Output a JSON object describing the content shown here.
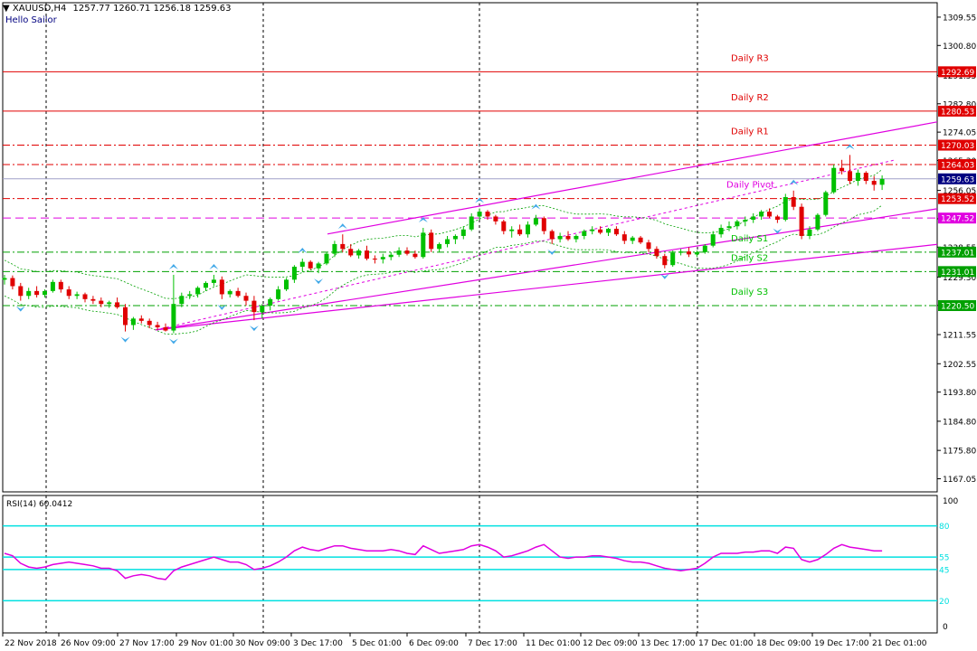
{
  "header": {
    "symbol": "XAUUSD,H4",
    "ohlc": "1257.77 1260.71 1256.18 1259.63",
    "indicator_name": "Hello Sailor"
  },
  "chart_data": {
    "type": "candlestick",
    "symbol": "XAUUSD",
    "timeframe": "H4",
    "current_price": 1259.63,
    "ylim": [
      1163,
      1314
    ],
    "price_ticks": [
      "1309.55",
      "1300.80",
      "1291.55",
      "1282.80",
      "1274.05",
      "1265.30",
      "1256.05",
      "1247.30",
      "1238.55",
      "1229.30",
      "1220.55",
      "1211.55",
      "1202.55",
      "1193.80",
      "1184.80",
      "1175.80",
      "1167.05"
    ],
    "time_labels": [
      "22 Nov 2018",
      "26 Nov 09:00",
      "27 Nov 17:00",
      "29 Nov 01:00",
      "30 Nov 09:00",
      "3 Dec 17:00",
      "5 Dec 01:00",
      "6 Dec 09:00",
      "7 Dec 17:00",
      "11 Dec 01:00",
      "12 Dec 09:00",
      "13 Dec 17:00",
      "17 Dec 01:00",
      "18 Dec 09:00",
      "19 Dec 17:00",
      "21 Dec 01:00"
    ],
    "levels": [
      {
        "name": "Daily R3",
        "price": 1292.69,
        "color": "#e00000",
        "style": "solid"
      },
      {
        "name": "Daily R2",
        "price": 1280.53,
        "color": "#e00000",
        "style": "solid"
      },
      {
        "name": "Daily R1",
        "price": 1270.03,
        "color": "#e00000",
        "style": "dashdot"
      },
      {
        "name": "",
        "price": 1264.03,
        "color": "#e00000",
        "style": "dashdot"
      },
      {
        "name": "Daily Pivot",
        "price": 1253.52,
        "color": "#e00000",
        "style": "dashdot"
      },
      {
        "name": "",
        "price": 1247.52,
        "color": "#e000e0",
        "style": "dashed"
      },
      {
        "name": "Daily S1",
        "price": 1237.01,
        "color": "#00a000",
        "style": "dashdot"
      },
      {
        "name": "Daily S2",
        "price": 1231.01,
        "color": "#00a000",
        "style": "dashdot"
      },
      {
        "name": "Daily S3",
        "price": 1220.5,
        "color": "#00a000",
        "style": "dashdot"
      }
    ],
    "level_name_colors": {
      "Daily R3": "#e00000",
      "Daily R2": "#e00000",
      "Daily R1": "#e00000",
      "Daily Pivot": "#e000e0",
      "Daily S1": "#00c000",
      "Daily S2": "#00c000",
      "Daily S3": "#00c000"
    },
    "price_label_colors": {
      "current": "#000080",
      "resistance": "#e00000",
      "pivot": "#e000e0",
      "support": "#00a000"
    },
    "candles": [
      [
        1228.5,
        1230.0,
        1227.0,
        1229.0
      ],
      [
        1229.0,
        1229.8,
        1225.5,
        1226.5
      ],
      [
        1226.5,
        1227.5,
        1222.0,
        1223.5
      ],
      [
        1223.5,
        1226.0,
        1222.5,
        1225.0
      ],
      [
        1225.0,
        1226.5,
        1223.0,
        1223.8
      ],
      [
        1223.8,
        1225.5,
        1223.0,
        1225.0
      ],
      [
        1225.0,
        1228.5,
        1224.5,
        1227.8
      ],
      [
        1227.8,
        1228.5,
        1224.5,
        1225.5
      ],
      [
        1225.5,
        1226.5,
        1222.5,
        1223.5
      ],
      [
        1223.5,
        1224.8,
        1222.5,
        1224.0
      ],
      [
        1224.0,
        1224.5,
        1221.5,
        1222.5
      ],
      [
        1222.5,
        1223.5,
        1221.0,
        1222.0
      ],
      [
        1222.0,
        1223.0,
        1220.0,
        1221.0
      ],
      [
        1221.0,
        1222.0,
        1219.8,
        1221.5
      ],
      [
        1221.5,
        1223.0,
        1219.5,
        1220.0
      ],
      [
        1220.0,
        1221.0,
        1212.5,
        1214.5
      ],
      [
        1214.5,
        1217.0,
        1213.0,
        1216.5
      ],
      [
        1216.5,
        1217.5,
        1215.0,
        1215.8
      ],
      [
        1215.8,
        1216.5,
        1213.5,
        1214.5
      ],
      [
        1214.5,
        1215.5,
        1213.0,
        1213.8
      ],
      [
        1213.8,
        1215.0,
        1212.5,
        1212.8
      ],
      [
        1212.8,
        1230.0,
        1212.0,
        1221.0
      ],
      [
        1221.0,
        1224.5,
        1220.0,
        1223.5
      ],
      [
        1223.5,
        1225.0,
        1222.5,
        1224.0
      ],
      [
        1224.0,
        1226.5,
        1223.0,
        1226.0
      ],
      [
        1226.0,
        1228.0,
        1225.0,
        1227.5
      ],
      [
        1227.5,
        1230.0,
        1226.5,
        1228.5
      ],
      [
        1228.5,
        1229.5,
        1222.5,
        1224.0
      ],
      [
        1224.0,
        1225.5,
        1223.0,
        1225.0
      ],
      [
        1225.0,
        1226.0,
        1223.0,
        1223.5
      ],
      [
        1223.5,
        1224.5,
        1220.5,
        1222.0
      ],
      [
        1222.0,
        1223.5,
        1216.0,
        1218.5
      ],
      [
        1218.5,
        1221.0,
        1216.5,
        1220.5
      ],
      [
        1220.5,
        1223.0,
        1219.0,
        1222.5
      ],
      [
        1222.5,
        1226.5,
        1222.0,
        1225.5
      ],
      [
        1225.5,
        1229.0,
        1225.0,
        1228.5
      ],
      [
        1228.5,
        1233.0,
        1227.5,
        1232.5
      ],
      [
        1232.5,
        1235.0,
        1231.0,
        1234.0
      ],
      [
        1234.0,
        1234.5,
        1231.5,
        1232.0
      ],
      [
        1232.0,
        1234.0,
        1230.5,
        1233.5
      ],
      [
        1233.5,
        1237.0,
        1233.0,
        1236.5
      ],
      [
        1236.5,
        1240.5,
        1235.5,
        1239.5
      ],
      [
        1239.5,
        1242.5,
        1237.0,
        1238.0
      ],
      [
        1238.0,
        1239.5,
        1235.5,
        1236.0
      ],
      [
        1236.0,
        1238.0,
        1235.0,
        1237.5
      ],
      [
        1237.5,
        1239.0,
        1234.5,
        1235.0
      ],
      [
        1235.0,
        1236.0,
        1233.5,
        1234.8
      ],
      [
        1234.8,
        1236.5,
        1233.5,
        1235.5
      ],
      [
        1235.5,
        1237.0,
        1234.5,
        1236.2
      ],
      [
        1236.2,
        1238.5,
        1235.5,
        1237.5
      ],
      [
        1237.5,
        1238.5,
        1236.0,
        1236.5
      ],
      [
        1236.5,
        1237.5,
        1235.0,
        1235.5
      ],
      [
        1235.5,
        1244.5,
        1235.0,
        1243.0
      ],
      [
        1243.0,
        1244.0,
        1237.0,
        1238.0
      ],
      [
        1238.0,
        1240.0,
        1237.0,
        1239.5
      ],
      [
        1239.5,
        1242.0,
        1238.5,
        1241.0
      ],
      [
        1241.0,
        1242.5,
        1239.5,
        1242.0
      ],
      [
        1242.0,
        1245.0,
        1241.0,
        1244.0
      ],
      [
        1244.0,
        1249.0,
        1243.5,
        1248.0
      ],
      [
        1248.0,
        1250.5,
        1247.0,
        1249.5
      ],
      [
        1249.5,
        1250.0,
        1247.0,
        1248.0
      ],
      [
        1248.0,
        1248.5,
        1245.5,
        1246.5
      ],
      [
        1246.5,
        1247.0,
        1242.5,
        1243.5
      ],
      [
        1243.5,
        1245.0,
        1241.5,
        1244.0
      ],
      [
        1244.0,
        1245.5,
        1242.0,
        1242.5
      ],
      [
        1242.5,
        1246.5,
        1241.5,
        1245.5
      ],
      [
        1245.5,
        1248.5,
        1245.0,
        1247.5
      ],
      [
        1247.5,
        1248.0,
        1242.5,
        1243.5
      ],
      [
        1243.5,
        1244.0,
        1239.5,
        1241.0
      ],
      [
        1241.0,
        1243.0,
        1240.0,
        1242.0
      ],
      [
        1242.0,
        1243.5,
        1240.5,
        1241.0
      ],
      [
        1241.0,
        1242.5,
        1240.0,
        1242.0
      ],
      [
        1242.0,
        1244.0,
        1241.0,
        1243.5
      ],
      [
        1243.5,
        1245.0,
        1242.5,
        1244.0
      ],
      [
        1244.0,
        1245.0,
        1242.5,
        1243.0
      ],
      [
        1243.0,
        1244.5,
        1242.0,
        1244.2
      ],
      [
        1244.2,
        1245.0,
        1242.0,
        1242.5
      ],
      [
        1242.5,
        1243.5,
        1239.5,
        1240.5
      ],
      [
        1240.5,
        1242.0,
        1239.5,
        1241.5
      ],
      [
        1241.5,
        1242.0,
        1239.5,
        1240.0
      ],
      [
        1240.0,
        1240.8,
        1237.0,
        1238.0
      ],
      [
        1238.0,
        1238.8,
        1235.0,
        1235.8
      ],
      [
        1235.8,
        1236.5,
        1232.0,
        1233.0
      ],
      [
        1233.0,
        1237.5,
        1232.5,
        1236.8
      ],
      [
        1236.8,
        1238.0,
        1236.0,
        1237.2
      ],
      [
        1237.2,
        1238.5,
        1235.5,
        1236.3
      ],
      [
        1236.3,
        1237.5,
        1235.5,
        1237.0
      ],
      [
        1237.0,
        1239.5,
        1236.5,
        1239.0
      ],
      [
        1239.0,
        1243.5,
        1238.5,
        1242.5
      ],
      [
        1242.5,
        1245.5,
        1241.5,
        1244.5
      ],
      [
        1244.5,
        1246.5,
        1243.5,
        1245.0
      ],
      [
        1245.0,
        1247.0,
        1244.0,
        1246.5
      ],
      [
        1246.5,
        1248.0,
        1245.0,
        1247.0
      ],
      [
        1247.0,
        1249.0,
        1246.0,
        1248.0
      ],
      [
        1248.0,
        1250.0,
        1247.0,
        1249.5
      ],
      [
        1249.5,
        1250.5,
        1247.5,
        1248.0
      ],
      [
        1248.0,
        1248.5,
        1246.0,
        1247.0
      ],
      [
        1247.0,
        1255.0,
        1246.5,
        1254.0
      ],
      [
        1254.0,
        1256.0,
        1250.0,
        1251.0
      ],
      [
        1251.0,
        1252.0,
        1241.0,
        1242.0
      ],
      [
        1242.0,
        1245.0,
        1241.0,
        1244.0
      ],
      [
        1244.0,
        1249.0,
        1243.5,
        1248.5
      ],
      [
        1248.5,
        1256.0,
        1248.0,
        1255.5
      ],
      [
        1255.5,
        1264.0,
        1255.0,
        1263.0
      ],
      [
        1263.0,
        1265.5,
        1261.0,
        1262.0
      ],
      [
        1262.0,
        1267.0,
        1258.0,
        1259.0
      ],
      [
        1259.0,
        1262.5,
        1257.5,
        1261.5
      ],
      [
        1261.5,
        1262.0,
        1258.0,
        1259.0
      ],
      [
        1259.0,
        1260.5,
        1256.0,
        1257.8
      ],
      [
        1257.8,
        1260.7,
        1256.2,
        1259.6
      ]
    ],
    "rsi": {
      "label": "RSI(14) 60.0412",
      "period": 14,
      "last": 60.0412,
      "ylim": [
        0,
        100
      ],
      "axis_ticks": [
        "100",
        "0"
      ],
      "levels": [
        80,
        55,
        45,
        20
      ],
      "values": [
        58,
        56,
        50,
        47,
        46,
        47,
        49,
        50,
        51,
        50,
        49,
        48,
        46,
        46,
        44,
        38,
        40,
        41,
        40,
        38,
        37,
        44,
        47,
        49,
        51,
        53,
        55,
        53,
        51,
        51,
        49,
        45,
        46,
        48,
        51,
        55,
        60,
        63,
        61,
        60,
        62,
        64,
        64,
        62,
        61,
        60,
        60,
        60,
        61,
        60,
        58,
        57,
        64,
        61,
        58,
        59,
        60,
        61,
        64,
        65,
        63,
        60,
        55,
        56,
        58,
        60,
        63,
        65,
        60,
        55,
        54,
        55,
        55,
        56,
        56,
        55,
        54,
        52,
        51,
        51,
        50,
        48,
        46,
        45,
        44,
        45,
        46,
        50,
        55,
        58,
        58,
        58,
        59,
        59,
        60,
        60,
        58,
        63,
        62,
        53,
        51,
        53,
        57,
        62,
        65,
        63,
        62,
        61,
        60,
        60
      ],
      "level_color": "#00e0e0",
      "line_color": "#e000e0"
    },
    "colors": {
      "bull": "#00c000",
      "bear": "#e00000",
      "channel": "#e000e0",
      "band": "#00a000",
      "fractal": "#40a8e8"
    }
  }
}
